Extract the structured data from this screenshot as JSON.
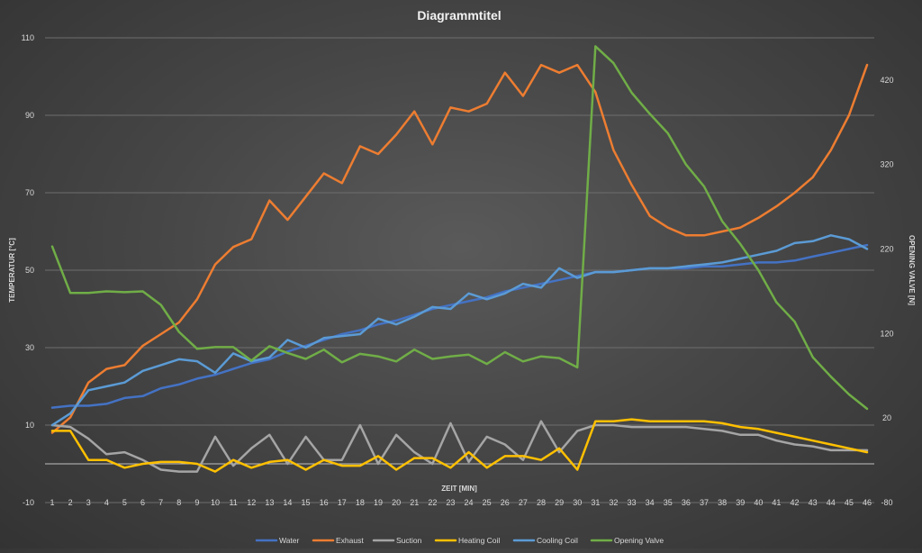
{
  "chart_data": {
    "type": "line",
    "title": "Diagrammtitel",
    "xlabel": "ZEIT [MIN]",
    "ylabel": "TEMPERATUR [°C]",
    "y2label": "OPENING VALVE  [N]",
    "x": [
      1,
      2,
      3,
      4,
      5,
      6,
      7,
      8,
      9,
      10,
      11,
      12,
      13,
      14,
      15,
      16,
      17,
      18,
      19,
      20,
      21,
      22,
      23,
      24,
      25,
      26,
      27,
      28,
      29,
      30,
      31,
      32,
      33,
      34,
      35,
      36,
      37,
      38,
      39,
      40,
      41,
      42,
      43,
      44,
      45,
      46
    ],
    "ylim": [
      -10,
      110
    ],
    "yticks": [
      -10,
      10,
      30,
      50,
      70,
      90,
      110
    ],
    "y2lim": [
      -80,
      470
    ],
    "y2ticks": [
      -80,
      20,
      120,
      220,
      320,
      420
    ],
    "grid": true,
    "legend_position": "bottom",
    "series": [
      {
        "name": "Water",
        "axis": "left",
        "color": "#4472C4",
        "values": [
          14.5,
          15,
          15,
          15.5,
          17,
          17.5,
          19.5,
          20.5,
          22,
          23,
          24.5,
          26,
          27,
          29,
          30.5,
          32,
          33.5,
          34.5,
          36,
          37,
          38.5,
          40,
          41,
          42,
          43,
          44.5,
          45.5,
          46.5,
          47.5,
          48.5,
          49.5,
          49.5,
          50,
          50.5,
          50.5,
          50.5,
          51,
          51,
          51.5,
          52,
          52,
          52.5,
          53.5,
          54.5,
          55.5,
          56.5
        ]
      },
      {
        "name": "Exhaust",
        "axis": "left",
        "color": "#ED7D31",
        "values": [
          8,
          12,
          21,
          24.5,
          25.5,
          30.5,
          33.5,
          36.5,
          42.5,
          51.5,
          56,
          58,
          68,
          63,
          69,
          75,
          72.5,
          82,
          80,
          85,
          91,
          82.5,
          92,
          91,
          93,
          101,
          95,
          103,
          101,
          103,
          96,
          81,
          72,
          64,
          61,
          59,
          59,
          60,
          61,
          63.5,
          66.5,
          70,
          74,
          81,
          90,
          103
        ]
      },
      {
        "name": "Suction",
        "axis": "left",
        "color": "#A5A5A5",
        "values": [
          10,
          9.5,
          6.5,
          2.5,
          3,
          1,
          -1.5,
          -2,
          -2,
          7,
          -0.5,
          4,
          7.5,
          0,
          7,
          1,
          1,
          10,
          0,
          7.5,
          3,
          0,
          10.5,
          0.5,
          7,
          5,
          1,
          11,
          3,
          8.5,
          10,
          10,
          9.5,
          9.5,
          9.5,
          9.5,
          9,
          8.5,
          7.5,
          7.5,
          6,
          5,
          4.5,
          3.5,
          3.5,
          3.5
        ]
      },
      {
        "name": "Heating Coil",
        "axis": "left",
        "color": "#FFC000",
        "values": [
          8.5,
          8.5,
          1,
          1,
          -1,
          0,
          0.5,
          0.5,
          0,
          -2,
          1,
          -1,
          0.5,
          1,
          -1.5,
          1,
          -0.5,
          -0.5,
          2,
          -1.5,
          1.5,
          1.5,
          -1,
          3,
          -1,
          2,
          2,
          1,
          4,
          -1.5,
          11,
          11,
          11.5,
          11,
          11,
          11,
          11,
          10.5,
          9.5,
          9,
          8,
          7,
          6,
          5,
          4,
          3
        ]
      },
      {
        "name": "Cooling Coil",
        "axis": "left",
        "color": "#5B9BD5",
        "values": [
          10,
          13,
          19,
          20,
          21,
          24,
          25.5,
          27,
          26.5,
          23.5,
          28.5,
          26.5,
          27.5,
          32,
          30,
          32.5,
          33,
          33.5,
          37.5,
          36,
          38,
          40.5,
          40,
          44,
          42.5,
          44,
          46.5,
          45.5,
          50.5,
          48,
          49.5,
          49.5,
          50,
          50.5,
          50.5,
          51,
          51.5,
          52,
          53,
          54,
          55,
          57,
          57.5,
          59,
          58,
          55.5
        ]
      },
      {
        "name": "Opening Valve",
        "axis": "right",
        "color": "#70AD47",
        "values": [
          223,
          168,
          168,
          170,
          169,
          170,
          154,
          122,
          102,
          104,
          104,
          88,
          105,
          97,
          90,
          101,
          86,
          96,
          93,
          87,
          101,
          90,
          93,
          95,
          84,
          98,
          87,
          93,
          91,
          80,
          460,
          440,
          405,
          380,
          357,
          320,
          294,
          253,
          226,
          195,
          157,
          134,
          92,
          69,
          48,
          31
        ]
      }
    ]
  }
}
